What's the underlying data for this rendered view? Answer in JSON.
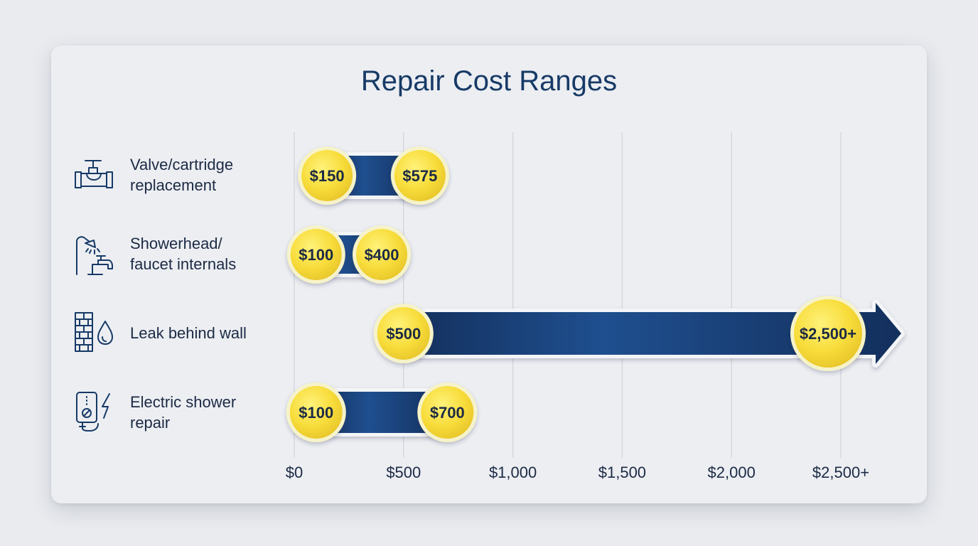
{
  "chart_data": {
    "type": "bar",
    "title": "Repair Cost Ranges",
    "xlim": [
      0,
      2500
    ],
    "x_ticks": [
      0,
      500,
      1000,
      1500,
      2000,
      2500
    ],
    "x_tick_labels": [
      "$0",
      "$500",
      "$1,000",
      "$1,500",
      "$2,000",
      "$2,500+"
    ],
    "grid": true,
    "categories": [
      {
        "label_lines": [
          "Valve/cartridge",
          "replacement"
        ],
        "icon": "valve-icon",
        "low": 150,
        "high": 575,
        "low_label": "$150",
        "high_label": "$575",
        "open_ended": false
      },
      {
        "label_lines": [
          "Showerhead/",
          "faucet internals"
        ],
        "icon": "showerhead-faucet-icon",
        "low": 100,
        "high": 400,
        "low_label": "$100",
        "high_label": "$400",
        "open_ended": false
      },
      {
        "label_lines": [
          "Leak behind wall"
        ],
        "icon": "wall-leak-icon",
        "low": 500,
        "high": 2500,
        "low_label": "$500",
        "high_label": "$2,500+",
        "open_ended": true
      },
      {
        "label_lines": [
          "Electric shower",
          "repair"
        ],
        "icon": "electric-shower-icon",
        "low": 100,
        "high": 700,
        "low_label": "$100",
        "high_label": "$700",
        "open_ended": false
      }
    ],
    "colors": {
      "bar_dark": "#132f5c",
      "bar_light": "#1f4f8f",
      "marker": "#f7dc3a",
      "marker_ring": "#f4f0b8",
      "grid": "#d4d8de",
      "text": "#1c2a44",
      "title": "#173a66"
    }
  }
}
